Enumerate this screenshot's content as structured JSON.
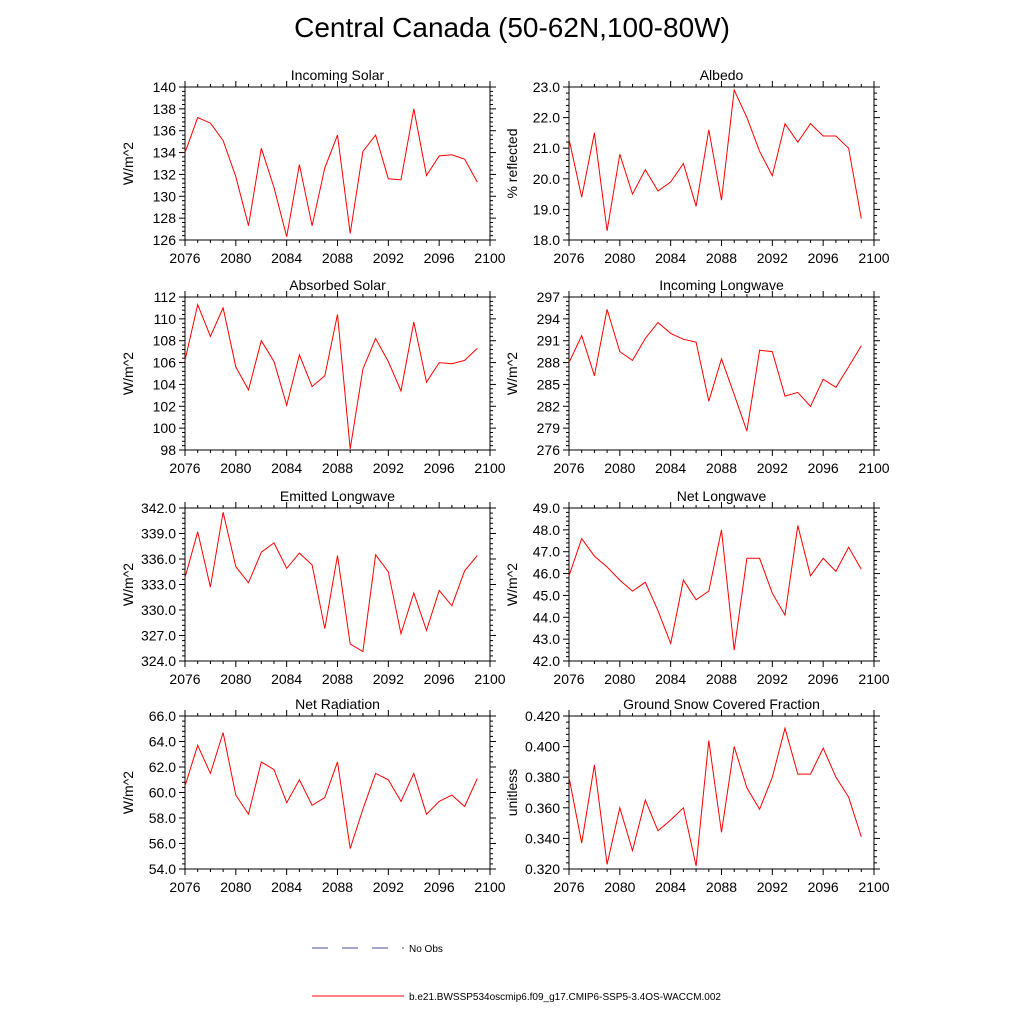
{
  "title": "Central Canada (50-62N,100-80W)",
  "legend": {
    "obs_label": "No Obs",
    "obs_color": "#4a4a9a",
    "model_label": "b.e21.BWSSP534oscmip6.f09_g17.CMIP6-SSP5-3.4OS-WACCM.002",
    "model_color": "#ff0000"
  },
  "chart_data": [
    {
      "type": "line",
      "title": "Incoming Solar",
      "xlabel": "",
      "ylabel": "W/m^2",
      "xlim": [
        2076,
        2100
      ],
      "ylim": [
        126,
        140
      ],
      "x_ticks": [
        "2076",
        "2080",
        "2084",
        "2088",
        "2092",
        "2096",
        "2100"
      ],
      "y_ticks": [
        "126",
        "128",
        "130",
        "132",
        "134",
        "136",
        "138",
        "140"
      ],
      "series": [
        {
          "name": "b.e21.BWSSP534oscmip6.f09_g17.CMIP6-SSP5-3.4OS-WACCM.002",
          "color": "#ff0000",
          "x": [
            2076,
            2077,
            2078,
            2079,
            2080,
            2081,
            2082,
            2083,
            2084,
            2085,
            2086,
            2087,
            2088,
            2089,
            2090,
            2091,
            2092,
            2093,
            2094,
            2095,
            2096,
            2097,
            2098,
            2099
          ],
          "values": [
            134.0,
            137.2,
            136.7,
            135.1,
            131.8,
            127.3,
            134.4,
            130.8,
            126.3,
            132.9,
            127.3,
            132.6,
            135.6,
            126.6,
            134.1,
            135.6,
            131.6,
            131.5,
            138.0,
            131.9,
            133.7,
            133.8,
            133.4,
            131.3
          ]
        }
      ]
    },
    {
      "type": "line",
      "title": "Albedo",
      "xlabel": "",
      "ylabel": "% reflected",
      "xlim": [
        2076,
        2100
      ],
      "ylim": [
        18,
        23
      ],
      "x_ticks": [
        "2076",
        "2080",
        "2084",
        "2088",
        "2092",
        "2096",
        "2100"
      ],
      "y_ticks": [
        "18.0",
        "19.0",
        "20.0",
        "21.0",
        "22.0",
        "23.0"
      ],
      "series": [
        {
          "name": "b.e21.BWSSP534oscmip6.f09_g17.CMIP6-SSP5-3.4OS-WACCM.002",
          "color": "#ff0000",
          "x": [
            2076,
            2077,
            2078,
            2079,
            2080,
            2081,
            2082,
            2083,
            2084,
            2085,
            2086,
            2087,
            2088,
            2089,
            2090,
            2091,
            2092,
            2093,
            2094,
            2095,
            2096,
            2097,
            2098,
            2099
          ],
          "values": [
            21.3,
            19.4,
            21.5,
            18.3,
            20.8,
            19.5,
            20.3,
            19.6,
            19.9,
            20.5,
            19.1,
            21.6,
            19.3,
            22.9,
            22.0,
            20.9,
            20.1,
            21.8,
            21.2,
            21.8,
            21.4,
            21.4,
            21.0,
            18.7
          ]
        }
      ]
    },
    {
      "type": "line",
      "title": "Absorbed Solar",
      "xlabel": "",
      "ylabel": "W/m^2",
      "xlim": [
        2076,
        2100
      ],
      "ylim": [
        98,
        112
      ],
      "x_ticks": [
        "2076",
        "2080",
        "2084",
        "2088",
        "2092",
        "2096",
        "2100"
      ],
      "y_ticks": [
        "98",
        "100",
        "102",
        "104",
        "106",
        "108",
        "110",
        "112"
      ],
      "series": [
        {
          "name": "b.e21.BWSSP534oscmip6.f09_g17.CMIP6-SSP5-3.4OS-WACCM.002",
          "color": "#ff0000",
          "x": [
            2076,
            2077,
            2078,
            2079,
            2080,
            2081,
            2082,
            2083,
            2084,
            2085,
            2086,
            2087,
            2088,
            2089,
            2090,
            2091,
            2092,
            2093,
            2094,
            2095,
            2096,
            2097,
            2098,
            2099
          ],
          "values": [
            106.2,
            111.3,
            108.4,
            111.0,
            105.6,
            103.5,
            108.0,
            106.1,
            102.1,
            106.7,
            103.8,
            104.8,
            110.4,
            98.1,
            105.4,
            108.2,
            106.1,
            103.4,
            109.7,
            104.2,
            106.0,
            105.9,
            106.2,
            107.3
          ]
        }
      ]
    },
    {
      "type": "line",
      "title": "Incoming Longwave",
      "xlabel": "",
      "ylabel": "W/m^2",
      "xlim": [
        2076,
        2100
      ],
      "ylim": [
        276,
        297
      ],
      "x_ticks": [
        "2076",
        "2080",
        "2084",
        "2088",
        "2092",
        "2096",
        "2100"
      ],
      "y_ticks": [
        "276",
        "279",
        "282",
        "285",
        "288",
        "291",
        "294",
        "297"
      ],
      "series": [
        {
          "name": "b.e21.BWSSP534oscmip6.f09_g17.CMIP6-SSP5-3.4OS-WACCM.002",
          "color": "#ff0000",
          "x": [
            2076,
            2077,
            2078,
            2079,
            2080,
            2081,
            2082,
            2083,
            2084,
            2085,
            2086,
            2087,
            2088,
            2089,
            2090,
            2091,
            2092,
            2093,
            2094,
            2095,
            2096,
            2097,
            2098,
            2099
          ],
          "values": [
            288.0,
            291.7,
            286.2,
            295.3,
            289.5,
            288.3,
            291.3,
            293.5,
            292.0,
            291.2,
            290.8,
            282.7,
            288.5,
            283.6,
            278.6,
            289.7,
            289.5,
            283.4,
            283.9,
            282.0,
            285.7,
            284.6,
            287.4,
            290.3
          ]
        }
      ]
    },
    {
      "type": "line",
      "title": "Emitted Longwave",
      "xlabel": "",
      "ylabel": "W/m^2",
      "xlim": [
        2076,
        2100
      ],
      "ylim": [
        324,
        342
      ],
      "x_ticks": [
        "2076",
        "2080",
        "2084",
        "2088",
        "2092",
        "2096",
        "2100"
      ],
      "y_ticks": [
        "324.0",
        "327.0",
        "330.0",
        "333.0",
        "336.0",
        "339.0",
        "342.0"
      ],
      "series": [
        {
          "name": "b.e21.BWSSP534oscmip6.f09_g17.CMIP6-SSP5-3.4OS-WACCM.002",
          "color": "#ff0000",
          "x": [
            2076,
            2077,
            2078,
            2079,
            2080,
            2081,
            2082,
            2083,
            2084,
            2085,
            2086,
            2087,
            2088,
            2089,
            2090,
            2091,
            2092,
            2093,
            2094,
            2095,
            2096,
            2097,
            2098,
            2099
          ],
          "values": [
            333.8,
            339.2,
            332.7,
            341.5,
            335.1,
            333.2,
            336.8,
            337.9,
            334.9,
            336.7,
            335.3,
            327.8,
            336.4,
            326.0,
            325.1,
            336.5,
            334.5,
            327.2,
            332.0,
            327.6,
            332.3,
            330.5,
            334.6,
            336.4
          ]
        }
      ]
    },
    {
      "type": "line",
      "title": "Net Longwave",
      "xlabel": "",
      "ylabel": "W/m^2",
      "xlim": [
        2076,
        2100
      ],
      "ylim": [
        42,
        49
      ],
      "x_ticks": [
        "2076",
        "2080",
        "2084",
        "2088",
        "2092",
        "2096",
        "2100"
      ],
      "y_ticks": [
        "42.0",
        "43.0",
        "44.0",
        "45.0",
        "46.0",
        "47.0",
        "48.0",
        "49.0"
      ],
      "series": [
        {
          "name": "b.e21.BWSSP534oscmip6.f09_g17.CMIP6-SSP5-3.4OS-WACCM.002",
          "color": "#ff0000",
          "x": [
            2076,
            2077,
            2078,
            2079,
            2080,
            2081,
            2082,
            2083,
            2084,
            2085,
            2086,
            2087,
            2088,
            2089,
            2090,
            2091,
            2092,
            2093,
            2094,
            2095,
            2096,
            2097,
            2098,
            2099
          ],
          "values": [
            45.9,
            47.6,
            46.8,
            46.3,
            45.7,
            45.2,
            45.6,
            44.3,
            42.8,
            45.7,
            44.8,
            45.2,
            48.0,
            42.5,
            46.7,
            46.7,
            45.1,
            44.1,
            48.2,
            45.9,
            46.7,
            46.1,
            47.2,
            46.2
          ]
        }
      ]
    },
    {
      "type": "line",
      "title": "Net Radiation",
      "xlabel": "",
      "ylabel": "W/m^2",
      "xlim": [
        2076,
        2100
      ],
      "ylim": [
        54,
        66
      ],
      "x_ticks": [
        "2076",
        "2080",
        "2084",
        "2088",
        "2092",
        "2096",
        "2100"
      ],
      "y_ticks": [
        "54.0",
        "56.0",
        "58.0",
        "60.0",
        "62.0",
        "64.0",
        "66.0"
      ],
      "series": [
        {
          "name": "b.e21.BWSSP534oscmip6.f09_g17.CMIP6-SSP5-3.4OS-WACCM.002",
          "color": "#ff0000",
          "x": [
            2076,
            2077,
            2078,
            2079,
            2080,
            2081,
            2082,
            2083,
            2084,
            2085,
            2086,
            2087,
            2088,
            2089,
            2090,
            2091,
            2092,
            2093,
            2094,
            2095,
            2096,
            2097,
            2098,
            2099
          ],
          "values": [
            60.5,
            63.7,
            61.5,
            64.7,
            59.8,
            58.3,
            62.4,
            61.8,
            59.2,
            61.0,
            59.0,
            59.6,
            62.4,
            55.6,
            58.7,
            61.5,
            61.0,
            59.3,
            61.5,
            58.3,
            59.3,
            59.8,
            58.9,
            61.1
          ]
        }
      ]
    },
    {
      "type": "line",
      "title": "Ground Snow Covered Fraction",
      "xlabel": "",
      "ylabel": "unitless",
      "xlim": [
        2076,
        2100
      ],
      "ylim": [
        0.32,
        0.42
      ],
      "x_ticks": [
        "2076",
        "2080",
        "2084",
        "2088",
        "2092",
        "2096",
        "2100"
      ],
      "y_ticks": [
        "0.320",
        "0.340",
        "0.360",
        "0.380",
        "0.400",
        "0.420"
      ],
      "series": [
        {
          "name": "b.e21.BWSSP534oscmip6.f09_g17.CMIP6-SSP5-3.4OS-WACCM.002",
          "color": "#ff0000",
          "x": [
            2076,
            2077,
            2078,
            2079,
            2080,
            2081,
            2082,
            2083,
            2084,
            2085,
            2086,
            2087,
            2088,
            2089,
            2090,
            2091,
            2092,
            2093,
            2094,
            2095,
            2096,
            2097,
            2098,
            2099
          ],
          "values": [
            0.38,
            0.337,
            0.388,
            0.323,
            0.36,
            0.332,
            0.365,
            0.345,
            0.352,
            0.36,
            0.322,
            0.404,
            0.344,
            0.4,
            0.373,
            0.359,
            0.38,
            0.412,
            0.382,
            0.382,
            0.399,
            0.38,
            0.367,
            0.341
          ]
        }
      ]
    }
  ]
}
